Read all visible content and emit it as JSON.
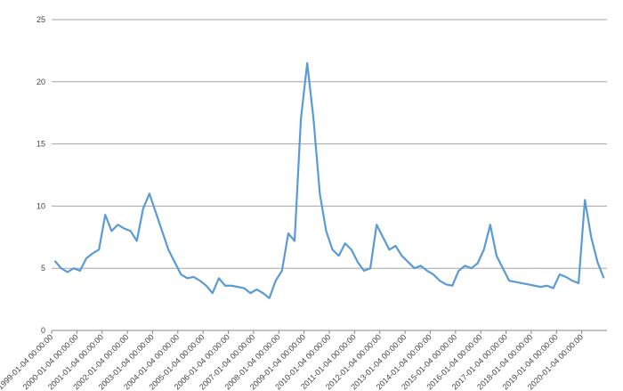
{
  "chart_data": {
    "type": "line",
    "categories": [
      "1999-01-04 00:00:00",
      null,
      null,
      null,
      "2000-01-04 00:00:00",
      null,
      null,
      null,
      "2001-01-04 00:00:00",
      null,
      null,
      null,
      "2002-01-04 00:00:00",
      null,
      null,
      null,
      "2003-01-04 00:00:00",
      null,
      null,
      null,
      "2004-01-04 00:00:00",
      null,
      null,
      null,
      "2005-01-04 00:00:00",
      null,
      null,
      null,
      "2006-01-04 00:00:00",
      null,
      null,
      null,
      "2007-01-04 00:00:00",
      null,
      null,
      null,
      "2008-01-04 00:00:00",
      null,
      null,
      null,
      "2009-01-04 00:00:00",
      null,
      null,
      null,
      "2010-01-04 00:00:00",
      null,
      null,
      null,
      "2011-01-04 00:00:00",
      null,
      null,
      null,
      "2012-01-04 00:00:00",
      null,
      null,
      null,
      "2013-01-04 00:00:00",
      null,
      null,
      null,
      "2014-01-04 00:00:00",
      null,
      null,
      null,
      "2015-01-04 00:00:00",
      null,
      null,
      null,
      "2016-01-04 00:00:00",
      null,
      null,
      null,
      "2017-01-04 00:00:00",
      null,
      null,
      null,
      "2018-01-04 00:00:00",
      null,
      null,
      null,
      "2019-01-04 00:00:00",
      null,
      null,
      null,
      "2020-01-04 00:00:00",
      null,
      null,
      null
    ],
    "values": [
      5.6,
      5.0,
      4.7,
      5.0,
      4.8,
      5.8,
      6.2,
      6.5,
      9.3,
      8.0,
      8.5,
      8.2,
      8.0,
      7.2,
      9.8,
      11.0,
      9.5,
      8.0,
      6.5,
      5.5,
      4.5,
      4.2,
      4.3,
      4.0,
      3.6,
      3.0,
      4.2,
      3.6,
      3.6,
      3.5,
      3.4,
      3.0,
      3.3,
      3.0,
      2.6,
      4.0,
      4.8,
      7.8,
      7.2,
      17.0,
      21.5,
      17.0,
      11.0,
      8.0,
      6.5,
      6.0,
      7.0,
      6.5,
      5.5,
      4.8,
      5.0,
      8.5,
      7.5,
      6.5,
      6.8,
      6.0,
      5.5,
      5.0,
      5.2,
      4.8,
      4.5,
      4.0,
      3.7,
      3.6,
      4.8,
      5.2,
      5.0,
      5.4,
      6.5,
      8.5,
      6.0,
      5.0,
      4.0,
      3.9,
      3.8,
      3.7,
      3.6,
      3.5,
      3.6,
      3.4,
      4.5,
      4.3,
      4.0,
      3.8,
      10.5,
      7.5,
      5.5,
      4.2
    ],
    "color": "#5b9bd5",
    "ylim": [
      0,
      25
    ],
    "yticks": [
      0,
      5,
      10,
      15,
      20,
      25
    ],
    "grid": true
  }
}
